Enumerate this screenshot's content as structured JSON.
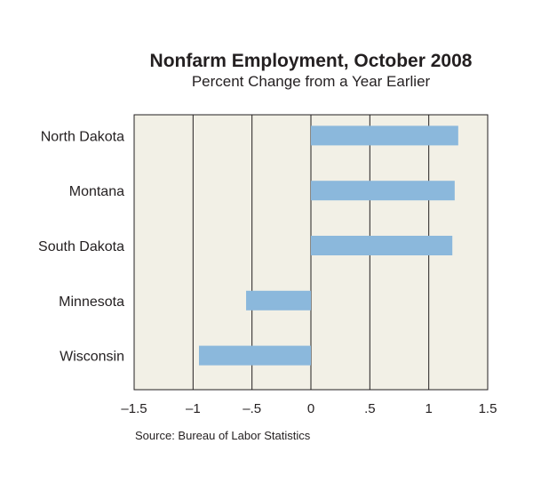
{
  "chart_data": {
    "type": "bar",
    "orientation": "horizontal",
    "title": "Nonfarm Employment, October 2008",
    "subtitle": "Percent Change from a Year Earlier",
    "categories": [
      "North Dakota",
      "Montana",
      "South Dakota",
      "Minnesota",
      "Wisconsin"
    ],
    "values": [
      1.25,
      1.22,
      1.2,
      -0.55,
      -0.95
    ],
    "xlim": [
      -1.5,
      1.5
    ],
    "xticks": [
      -1.5,
      -1,
      -0.5,
      0,
      0.5,
      1,
      1.5
    ],
    "xtick_labels": [
      "–1.5",
      "–1",
      "–.5",
      "0",
      ".5",
      "1",
      "1.5"
    ],
    "grid": "vertical",
    "bar_color": "#8bb8dc",
    "plot_background": "#f2f0e6",
    "source": "Source: Bureau of Labor Statistics"
  }
}
